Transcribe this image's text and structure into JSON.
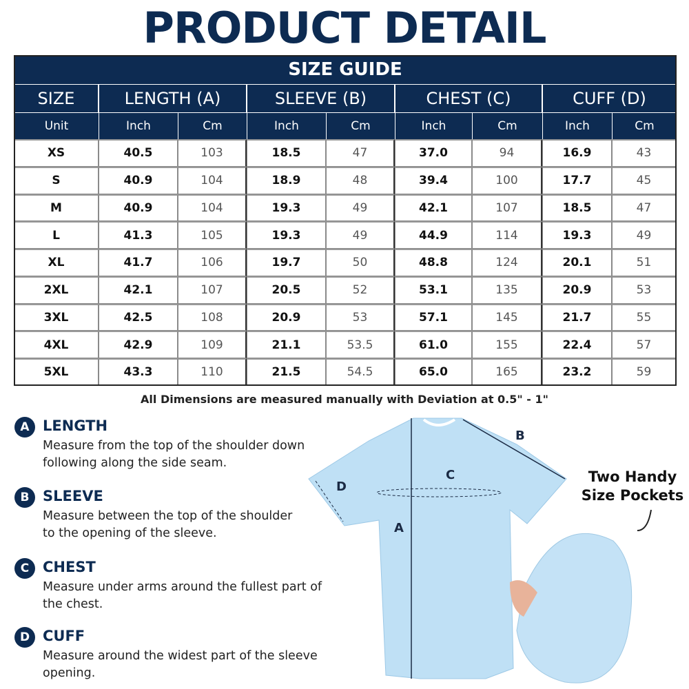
{
  "title": "PRODUCT DETAIL",
  "table": {
    "caption": "SIZE GUIDE",
    "columns": [
      "SIZE",
      "LENGTH (A)",
      "SLEEVE (B)",
      "CHEST (C)",
      "CUFF (D)"
    ],
    "units": [
      "Unit",
      "Inch",
      "Cm",
      "Inch",
      "Cm",
      "Inch",
      "Cm",
      "Inch",
      "Cm"
    ],
    "rows": [
      [
        "XS",
        "40.5",
        "103",
        "18.5",
        "47",
        "37.0",
        "94",
        "16.9",
        "43"
      ],
      [
        "S",
        "40.9",
        "104",
        "18.9",
        "48",
        "39.4",
        "100",
        "17.7",
        "45"
      ],
      [
        "M",
        "40.9",
        "104",
        "19.3",
        "49",
        "42.1",
        "107",
        "18.5",
        "47"
      ],
      [
        "L",
        "41.3",
        "105",
        "19.3",
        "49",
        "44.9",
        "114",
        "19.3",
        "49"
      ],
      [
        "XL",
        "41.7",
        "106",
        "19.7",
        "50",
        "48.8",
        "124",
        "20.1",
        "51"
      ],
      [
        "2XL",
        "42.1",
        "107",
        "20.5",
        "52",
        "53.1",
        "135",
        "20.9",
        "53"
      ],
      [
        "3XL",
        "42.5",
        "108",
        "20.9",
        "53",
        "57.1",
        "145",
        "21.7",
        "55"
      ],
      [
        "4XL",
        "42.9",
        "109",
        "21.1",
        "53.5",
        "61.0",
        "155",
        "22.4",
        "57"
      ],
      [
        "5XL",
        "43.3",
        "110",
        "21.5",
        "54.5",
        "65.0",
        "165",
        "23.2",
        "59"
      ]
    ]
  },
  "note": "All Dimensions are measured manually with Deviation at 0.5\" - 1\"",
  "measurements": [
    {
      "letter": "A",
      "name": "LENGTH",
      "lines": [
        "Measure from the top of  the shoulder down",
        "following along the side seam."
      ]
    },
    {
      "letter": "B",
      "name": "SLEEVE",
      "lines": [
        "Measure between the top of  the shoulder",
        "to the opening of the sleeve."
      ]
    },
    {
      "letter": "C",
      "name": "CHEST",
      "lines": [
        "Measure under arms around the fullest part of",
        "the chest."
      ]
    },
    {
      "letter": "D",
      "name": "CUFF",
      "lines": [
        "Measure around the widest part of the sleeve",
        "opening."
      ]
    }
  ],
  "diagram": {
    "labels": [
      "A",
      "B",
      "C",
      "D"
    ],
    "pockets": [
      "Two Handy",
      "Size Pockets"
    ]
  }
}
